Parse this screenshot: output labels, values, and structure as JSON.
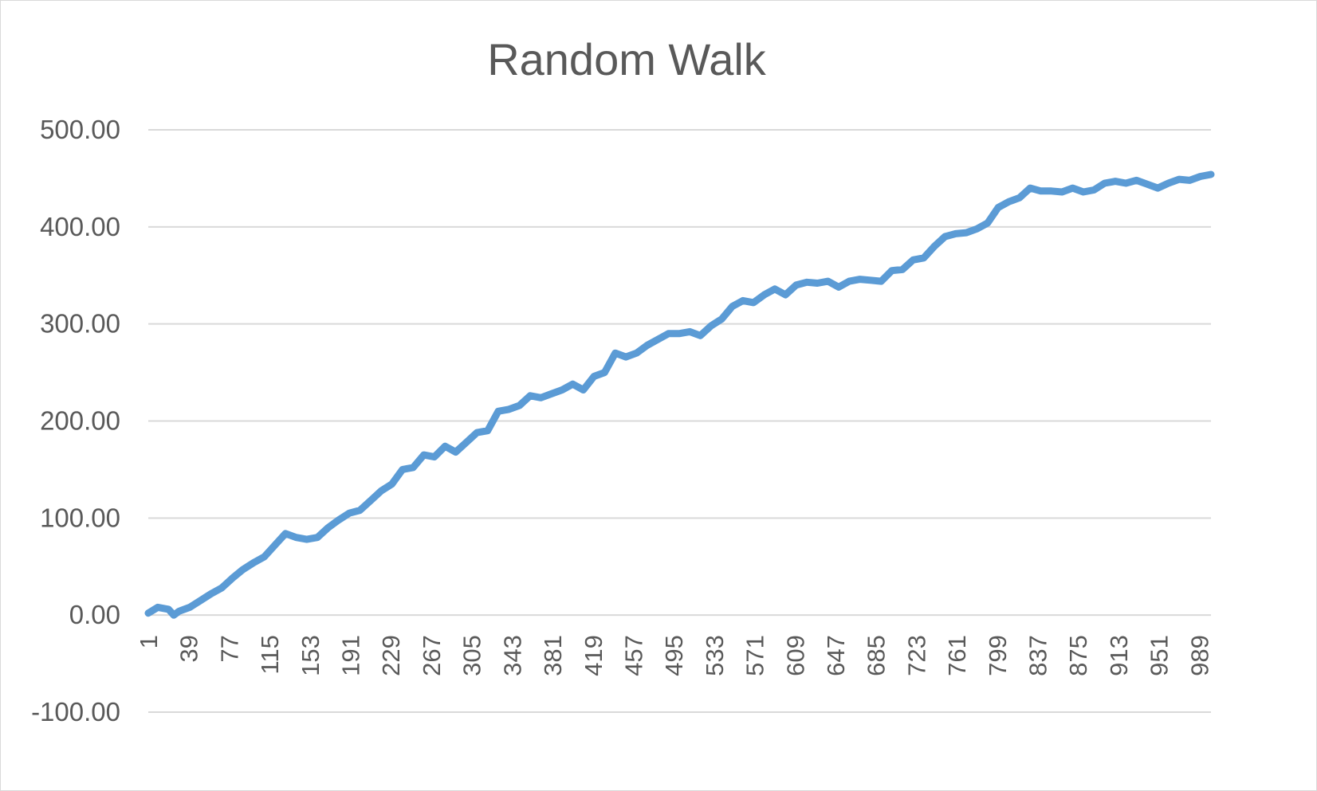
{
  "chart_data": {
    "type": "line",
    "title": "Random Walk",
    "xlabel": "",
    "ylabel": "",
    "ylim": [
      -100,
      500
    ],
    "y_ticks": [
      -100,
      0,
      100,
      200,
      300,
      400,
      500
    ],
    "y_tick_labels": [
      "-100.00",
      "0.00",
      "100.00",
      "200.00",
      "300.00",
      "400.00",
      "500.00"
    ],
    "x_range": [
      1,
      1000
    ],
    "x_tick_labels": [
      "1",
      "39",
      "77",
      "115",
      "153",
      "191",
      "229",
      "267",
      "305",
      "343",
      "381",
      "419",
      "457",
      "495",
      "533",
      "571",
      "609",
      "647",
      "685",
      "723",
      "761",
      "799",
      "837",
      "875",
      "913",
      "951",
      "989"
    ],
    "grid": true,
    "legend": "none",
    "series": [
      {
        "color": "#5b9bd5",
        "x": [
          1,
          10,
          20,
          25,
          30,
          40,
          50,
          60,
          70,
          80,
          90,
          100,
          110,
          120,
          130,
          140,
          150,
          160,
          170,
          180,
          190,
          200,
          210,
          220,
          230,
          240,
          250,
          260,
          270,
          280,
          290,
          300,
          310,
          320,
          330,
          340,
          350,
          360,
          370,
          380,
          390,
          400,
          410,
          420,
          430,
          440,
          450,
          460,
          470,
          480,
          490,
          500,
          510,
          520,
          530,
          540,
          550,
          560,
          570,
          580,
          590,
          600,
          610,
          620,
          630,
          640,
          650,
          660,
          670,
          680,
          690,
          700,
          710,
          720,
          730,
          740,
          750,
          760,
          770,
          780,
          790,
          800,
          810,
          820,
          830,
          840,
          850,
          860,
          870,
          880,
          890,
          900,
          910,
          920,
          930,
          940,
          950,
          960,
          970,
          980,
          990,
          1000
        ],
        "y": [
          2,
          8,
          6,
          0,
          4,
          8,
          15,
          22,
          28,
          38,
          47,
          54,
          60,
          72,
          84,
          80,
          78,
          80,
          90,
          98,
          105,
          108,
          118,
          128,
          135,
          150,
          152,
          165,
          163,
          174,
          168,
          178,
          188,
          190,
          210,
          212,
          216,
          226,
          224,
          228,
          232,
          238,
          232,
          246,
          250,
          270,
          266,
          270,
          278,
          284,
          290,
          290,
          292,
          288,
          298,
          305,
          318,
          324,
          322,
          330,
          336,
          330,
          340,
          343,
          342,
          344,
          338,
          344,
          346,
          345,
          344,
          355,
          356,
          366,
          368,
          380,
          390,
          393,
          394,
          398,
          404,
          420,
          426,
          430,
          440,
          437,
          437,
          436,
          440,
          436,
          438,
          445,
          447,
          445,
          448,
          444,
          440,
          445,
          449,
          448,
          452,
          454
        ]
      }
    ]
  }
}
